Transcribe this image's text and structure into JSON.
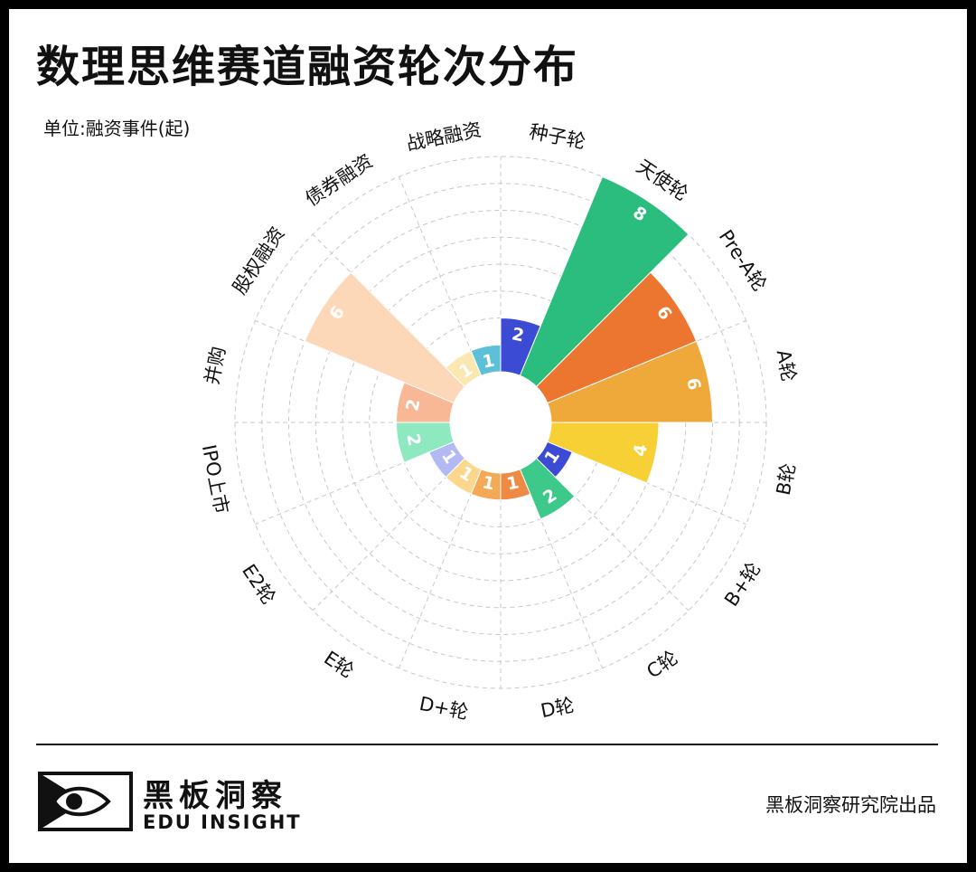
{
  "title": "数理思维赛道融资轮次分布",
  "unit": "单位:融资事件(起)",
  "footer": {
    "brand_cn": "黑板洞察",
    "brand_en": "EDU INSIGHT",
    "credit": "黑板洞察研究院出品"
  },
  "chart_data": {
    "type": "bar",
    "variant": "polar-rose",
    "categories": [
      "种子轮",
      "天使轮",
      "Pre-A轮",
      "A轮",
      "B轮",
      "B+轮",
      "C轮",
      "D轮",
      "D+轮",
      "E轮",
      "E2轮",
      "IPO上市",
      "并购",
      "股权融资",
      "债券融资",
      "战略融资"
    ],
    "values": [
      2,
      8,
      6,
      6,
      4,
      1,
      2,
      1,
      1,
      1,
      1,
      2,
      2,
      6,
      1,
      1
    ],
    "rmax": 8,
    "colors": [
      "#3b4bd4",
      "#2bbd7e",
      "#ec7630",
      "#efa93a",
      "#f6d035",
      "#3b4bd4",
      "#3dc98a",
      "#ef8a44",
      "#f3a955",
      "#fad78c",
      "#b3b9f2",
      "#8ee8c0",
      "#f8b896",
      "#fdd8b8",
      "#fbe8b0",
      "#5bc0d8"
    ],
    "label_colors": [
      "#ffffff",
      "#ffffff",
      "#ffffff",
      "#ffffff",
      "#ffffff",
      "#ffffff",
      "#ffffff",
      "#ffffff",
      "#ffffff",
      "#ffffff",
      "#ffffff",
      "#ffffff",
      "#ffffff",
      "#ffffff",
      "#ffffff",
      "#ffffff"
    ],
    "grid": true
  }
}
